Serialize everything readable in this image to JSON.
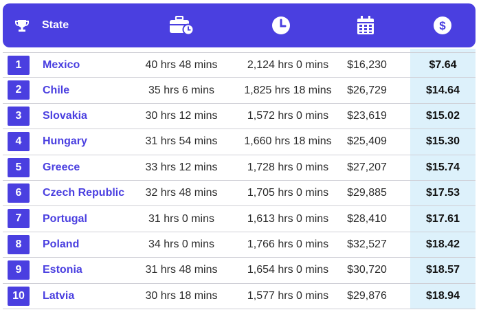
{
  "header": {
    "state_label": "State",
    "icons": [
      "trophy-icon",
      "briefcase-clock-icon",
      "clock-icon",
      "calendar-icon",
      "dollar-icon"
    ]
  },
  "colors": {
    "accent": "#4a3fe0",
    "highlight_column": "#ddf1fb",
    "divider": "#cfcfd6"
  },
  "rows": [
    {
      "rank": "1",
      "state": "Mexico",
      "weekly_hours": "40 hrs 48 mins",
      "annual_hours": "2,124 hrs 0 mins",
      "salary": "$16,230",
      "hourly_wage": "$7.64"
    },
    {
      "rank": "2",
      "state": "Chile",
      "weekly_hours": "35 hrs 6 mins",
      "annual_hours": "1,825 hrs 18 mins",
      "salary": "$26,729",
      "hourly_wage": "$14.64"
    },
    {
      "rank": "3",
      "state": "Slovakia",
      "weekly_hours": "30 hrs 12 mins",
      "annual_hours": "1,572 hrs 0 mins",
      "salary": "$23,619",
      "hourly_wage": "$15.02"
    },
    {
      "rank": "4",
      "state": "Hungary",
      "weekly_hours": "31 hrs 54 mins",
      "annual_hours": "1,660 hrs 18 mins",
      "salary": "$25,409",
      "hourly_wage": "$15.30"
    },
    {
      "rank": "5",
      "state": "Greece",
      "weekly_hours": "33 hrs 12 mins",
      "annual_hours": "1,728 hrs 0 mins",
      "salary": "$27,207",
      "hourly_wage": "$15.74"
    },
    {
      "rank": "6",
      "state": "Czech Republic",
      "weekly_hours": "32 hrs 48 mins",
      "annual_hours": "1,705 hrs 0 mins",
      "salary": "$29,885",
      "hourly_wage": "$17.53"
    },
    {
      "rank": "7",
      "state": "Portugal",
      "weekly_hours": "31 hrs 0 mins",
      "annual_hours": "1,613 hrs 0 mins",
      "salary": "$28,410",
      "hourly_wage": "$17.61"
    },
    {
      "rank": "8",
      "state": "Poland",
      "weekly_hours": "34 hrs 0 mins",
      "annual_hours": "1,766 hrs 0 mins",
      "salary": "$32,527",
      "hourly_wage": "$18.42"
    },
    {
      "rank": "9",
      "state": "Estonia",
      "weekly_hours": "31 hrs 48 mins",
      "annual_hours": "1,654 hrs 0 mins",
      "salary": "$30,720",
      "hourly_wage": "$18.57"
    },
    {
      "rank": "10",
      "state": "Latvia",
      "weekly_hours": "30 hrs 18 mins",
      "annual_hours": "1,577 hrs 0 mins",
      "salary": "$29,876",
      "hourly_wage": "$18.94"
    }
  ]
}
